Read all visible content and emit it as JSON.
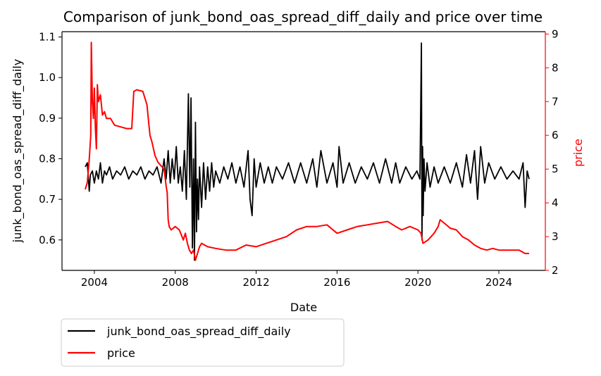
{
  "chart_data": {
    "type": "line",
    "title": "Comparison of junk_bond_oas_spread_diff_daily and price over time",
    "xlabel": "Date",
    "ylabel_left": "junk_bond_oas_spread_diff_daily",
    "ylabel_right": "price",
    "x_ticks": [
      "2004",
      "2008",
      "2012",
      "2016",
      "2020",
      "2024"
    ],
    "x_range": [
      2002.4,
      2026.3
    ],
    "ylim_left": [
      0.525,
      1.113
    ],
    "ylim_right": [
      2.0,
      9.07
    ],
    "y_ticks_left": [
      "0.6",
      "0.7",
      "0.8",
      "0.9",
      "1.0",
      "1.1"
    ],
    "y_ticks_right": [
      "2",
      "3",
      "4",
      "5",
      "6",
      "7",
      "8",
      "9"
    ],
    "grid": false,
    "legend_position": "below-left",
    "colors": {
      "spread": "#000000",
      "price": "#ff0000",
      "right_axis": "#ff0000"
    },
    "series": [
      {
        "name": "junk_bond_oas_spread_diff_daily",
        "axis": "left",
        "color": "#000000",
        "x": [
          2003.55,
          2003.65,
          2003.75,
          2003.8,
          2003.9,
          2004.0,
          2004.1,
          2004.2,
          2004.3,
          2004.4,
          2004.5,
          2004.6,
          2004.75,
          2004.9,
          2005.1,
          2005.3,
          2005.5,
          2005.7,
          2005.9,
          2006.1,
          2006.3,
          2006.5,
          2006.7,
          2006.9,
          2007.1,
          2007.3,
          2007.45,
          2007.55,
          2007.65,
          2007.75,
          2007.85,
          2007.95,
          2008.05,
          2008.15,
          2008.25,
          2008.35,
          2008.45,
          2008.55,
          2008.65,
          2008.72,
          2008.78,
          2008.85,
          2008.9,
          2008.95,
          2009.0,
          2009.05,
          2009.1,
          2009.15,
          2009.2,
          2009.3,
          2009.4,
          2009.5,
          2009.6,
          2009.7,
          2009.8,
          2009.9,
          2010.0,
          2010.2,
          2010.4,
          2010.6,
          2010.8,
          2011.0,
          2011.2,
          2011.4,
          2011.6,
          2011.7,
          2011.8,
          2011.9,
          2012.0,
          2012.2,
          2012.4,
          2012.6,
          2012.8,
          2013.0,
          2013.3,
          2013.6,
          2013.9,
          2014.2,
          2014.5,
          2014.8,
          2015.0,
          2015.2,
          2015.5,
          2015.8,
          2016.0,
          2016.1,
          2016.3,
          2016.6,
          2016.9,
          2017.2,
          2017.5,
          2017.8,
          2018.1,
          2018.4,
          2018.7,
          2018.9,
          2019.1,
          2019.4,
          2019.7,
          2019.95,
          2020.1,
          2020.17,
          2020.2,
          2020.23,
          2020.26,
          2020.3,
          2020.35,
          2020.45,
          2020.6,
          2020.8,
          2021.0,
          2021.3,
          2021.6,
          2021.9,
          2022.2,
          2022.4,
          2022.6,
          2022.8,
          2022.95,
          2023.1,
          2023.3,
          2023.5,
          2023.8,
          2024.1,
          2024.4,
          2024.7,
          2025.0,
          2025.2,
          2025.3,
          2025.4,
          2025.5
        ],
        "values": [
          0.78,
          0.79,
          0.72,
          0.76,
          0.77,
          0.74,
          0.77,
          0.75,
          0.79,
          0.74,
          0.77,
          0.76,
          0.78,
          0.75,
          0.77,
          0.76,
          0.78,
          0.75,
          0.77,
          0.76,
          0.78,
          0.75,
          0.77,
          0.76,
          0.78,
          0.74,
          0.8,
          0.75,
          0.82,
          0.74,
          0.8,
          0.75,
          0.83,
          0.74,
          0.78,
          0.72,
          0.82,
          0.7,
          0.96,
          0.73,
          0.95,
          0.58,
          0.8,
          0.55,
          0.89,
          0.62,
          0.75,
          0.65,
          0.78,
          0.68,
          0.79,
          0.7,
          0.78,
          0.72,
          0.79,
          0.73,
          0.77,
          0.74,
          0.78,
          0.75,
          0.79,
          0.74,
          0.78,
          0.73,
          0.82,
          0.7,
          0.66,
          0.8,
          0.73,
          0.79,
          0.74,
          0.78,
          0.74,
          0.78,
          0.75,
          0.79,
          0.74,
          0.79,
          0.74,
          0.8,
          0.73,
          0.82,
          0.74,
          0.79,
          0.73,
          0.83,
          0.74,
          0.79,
          0.74,
          0.78,
          0.75,
          0.79,
          0.74,
          0.8,
          0.74,
          0.79,
          0.74,
          0.78,
          0.75,
          0.77,
          0.75,
          1.085,
          0.6,
          0.83,
          0.66,
          0.8,
          0.72,
          0.79,
          0.73,
          0.78,
          0.74,
          0.78,
          0.74,
          0.79,
          0.73,
          0.81,
          0.74,
          0.82,
          0.7,
          0.83,
          0.74,
          0.79,
          0.75,
          0.78,
          0.75,
          0.77,
          0.75,
          0.79,
          0.68,
          0.77,
          0.75
        ]
      },
      {
        "name": "price",
        "axis": "right",
        "color": "#ff0000",
        "x": [
          2003.55,
          2003.65,
          2003.75,
          2003.82,
          2003.85,
          2003.9,
          2003.95,
          2004.0,
          2004.05,
          2004.1,
          2004.15,
          2004.2,
          2004.3,
          2004.4,
          2004.5,
          2004.6,
          2004.8,
          2005.0,
          2005.3,
          2005.6,
          2005.85,
          2005.95,
          2006.1,
          2006.4,
          2006.6,
          2006.7,
          2006.75,
          2006.85,
          2007.0,
          2007.15,
          2007.3,
          2007.45,
          2007.55,
          2007.6,
          2007.65,
          2007.7,
          2007.8,
          2008.0,
          2008.2,
          2008.4,
          2008.5,
          2008.6,
          2008.7,
          2008.8,
          2008.9,
          2009.0,
          2009.1,
          2009.2,
          2009.3,
          2009.6,
          2010.0,
          2010.5,
          2011.0,
          2011.5,
          2012.0,
          2012.5,
          2013.0,
          2013.5,
          2014.0,
          2014.5,
          2015.0,
          2015.5,
          2016.0,
          2016.5,
          2017.0,
          2017.5,
          2018.0,
          2018.5,
          2018.9,
          2019.2,
          2019.6,
          2020.0,
          2020.15,
          2020.25,
          2020.5,
          2020.8,
          2021.0,
          2021.1,
          2021.3,
          2021.6,
          2021.9,
          2022.2,
          2022.5,
          2022.8,
          2023.1,
          2023.4,
          2023.7,
          2024.0,
          2024.5,
          2025.0,
          2025.3,
          2025.5
        ],
        "values": [
          4.4,
          4.6,
          5.3,
          6.0,
          8.75,
          7.0,
          6.5,
          7.4,
          6.2,
          5.6,
          7.5,
          7.0,
          7.2,
          6.6,
          6.7,
          6.5,
          6.5,
          6.3,
          6.25,
          6.2,
          6.2,
          7.3,
          7.35,
          7.3,
          6.9,
          6.3,
          6.0,
          5.8,
          5.4,
          5.2,
          5.1,
          5.0,
          4.5,
          4.3,
          3.5,
          3.3,
          3.2,
          3.3,
          3.2,
          2.9,
          3.1,
          2.8,
          2.6,
          2.5,
          2.6,
          2.3,
          2.5,
          2.7,
          2.8,
          2.7,
          2.65,
          2.6,
          2.6,
          2.75,
          2.7,
          2.8,
          2.9,
          3.0,
          3.2,
          3.3,
          3.3,
          3.35,
          3.1,
          3.2,
          3.3,
          3.35,
          3.4,
          3.45,
          3.3,
          3.2,
          3.3,
          3.2,
          3.1,
          2.8,
          2.9,
          3.1,
          3.3,
          3.5,
          3.4,
          3.25,
          3.2,
          3.0,
          2.9,
          2.75,
          2.65,
          2.6,
          2.65,
          2.6,
          2.6,
          2.6,
          2.5,
          2.5
        ]
      }
    ]
  }
}
